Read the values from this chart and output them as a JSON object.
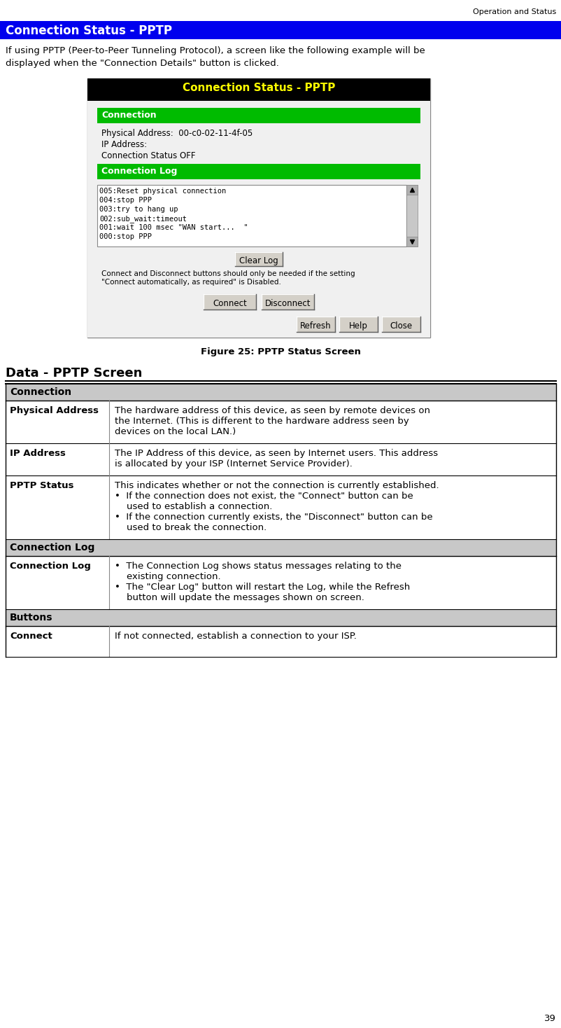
{
  "page_header": "Operation and Status",
  "section_title": "Connection Status - PPTP",
  "section_title_bg": "#0000EE",
  "section_title_color": "#FFFFFF",
  "intro_text_line1": "If using PPTP (Peer-to-Peer Tunneling Protocol), a screen like the following example will be",
  "intro_text_line2": "displayed when the \"Connection Details\" button is clicked.",
  "figure_caption": "Figure 25: PPTP Status Screen",
  "table_title": "Data - PPTP Screen",
  "table_rows": [
    {
      "type": "section",
      "label": "Connection"
    },
    {
      "type": "data",
      "term": "Physical Address",
      "desc": "The hardware address of this device, as seen by remote devices on\nthe Internet. (This is different to the hardware address seen by\ndevices on the local LAN.)"
    },
    {
      "type": "data",
      "term": "IP Address",
      "desc": "The IP Address of this device, as seen by Internet users. This address\nis allocated by your ISP (Internet Service Provider)."
    },
    {
      "type": "data",
      "term": "PPTP Status",
      "desc": "This indicates whether or not the connection is currently established.\n•  If the connection does not exist, the \"Connect\" button can be\n    used to establish a connection.\n•  If the connection currently exists, the \"Disconnect\" button can be\n    used to break the connection."
    },
    {
      "type": "section",
      "label": "Connection Log"
    },
    {
      "type": "data",
      "term": "Connection Log",
      "desc": "•  The Connection Log shows status messages relating to the\n    existing connection.\n•  The \"Clear Log\" button will restart the Log, while the Refresh\n    button will update the messages shown on screen."
    },
    {
      "type": "section",
      "label": "Buttons"
    },
    {
      "type": "data",
      "term": "Connect",
      "desc": "If not connected, establish a connection to your ISP."
    }
  ],
  "page_number": "39",
  "bg_color": "#FFFFFF",
  "dlg_title_bg": "#000000",
  "dlg_title_color": "#FFFF00",
  "dlg_section_bg": "#00BB00",
  "dlg_section_color": "#FFFFFF",
  "dlg_bg": "#FFFFFF",
  "dlg_outer_bg": "#E0E0E0",
  "log_lines": [
    "005:Reset physical connection",
    "004:stop PPP",
    "003:try to hang up",
    "002:sub_wait:timeout",
    "001:wait 100 msec \"WAN start...  \"",
    "000:stop PPP"
  ]
}
